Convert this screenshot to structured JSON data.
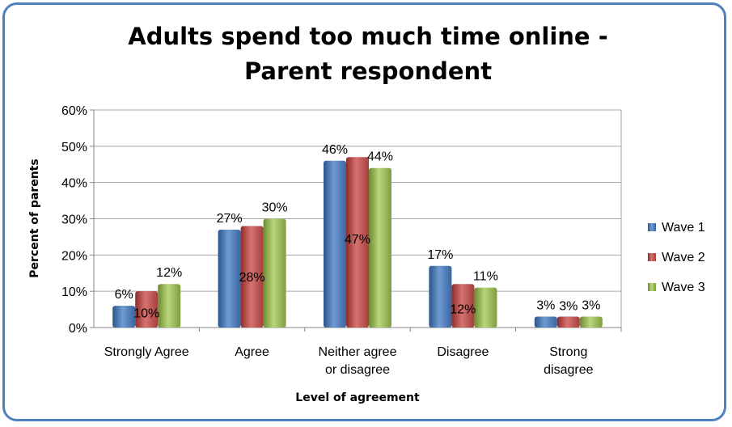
{
  "chart_data": {
    "type": "bar",
    "title_lines": [
      "Adults spend too much time online -",
      "Parent respondent"
    ],
    "xlabel": "Level of agreement",
    "ylabel": "Percent of parents",
    "categories": [
      [
        "Strongly Agree"
      ],
      [
        "Agree"
      ],
      [
        "Neither agree",
        "or disagree"
      ],
      [
        "Disagree"
      ],
      [
        "Strong",
        "disagree"
      ]
    ],
    "series": [
      {
        "name": "Wave 1",
        "values": [
          6,
          27,
          46,
          17,
          3
        ],
        "labels": [
          "6%",
          "27%",
          "46%",
          "17%",
          "3%"
        ],
        "color": "#4f81bd"
      },
      {
        "name": "Wave 2",
        "values": [
          10,
          28,
          47,
          12,
          3
        ],
        "labels": [
          "10%",
          "28%",
          "47%",
          "12%",
          "3%"
        ],
        "color": "#c0504d"
      },
      {
        "name": "Wave 3",
        "values": [
          12,
          30,
          44,
          11,
          3
        ],
        "labels": [
          "12%",
          "30%",
          "44%",
          "11%",
          "3%"
        ],
        "color": "#9bbb59"
      }
    ],
    "ylim": [
      0,
      60
    ],
    "yticks": [
      "0%",
      "10%",
      "20%",
      "30%",
      "40%",
      "50%",
      "60%"
    ],
    "grid": true,
    "legend": "right"
  }
}
